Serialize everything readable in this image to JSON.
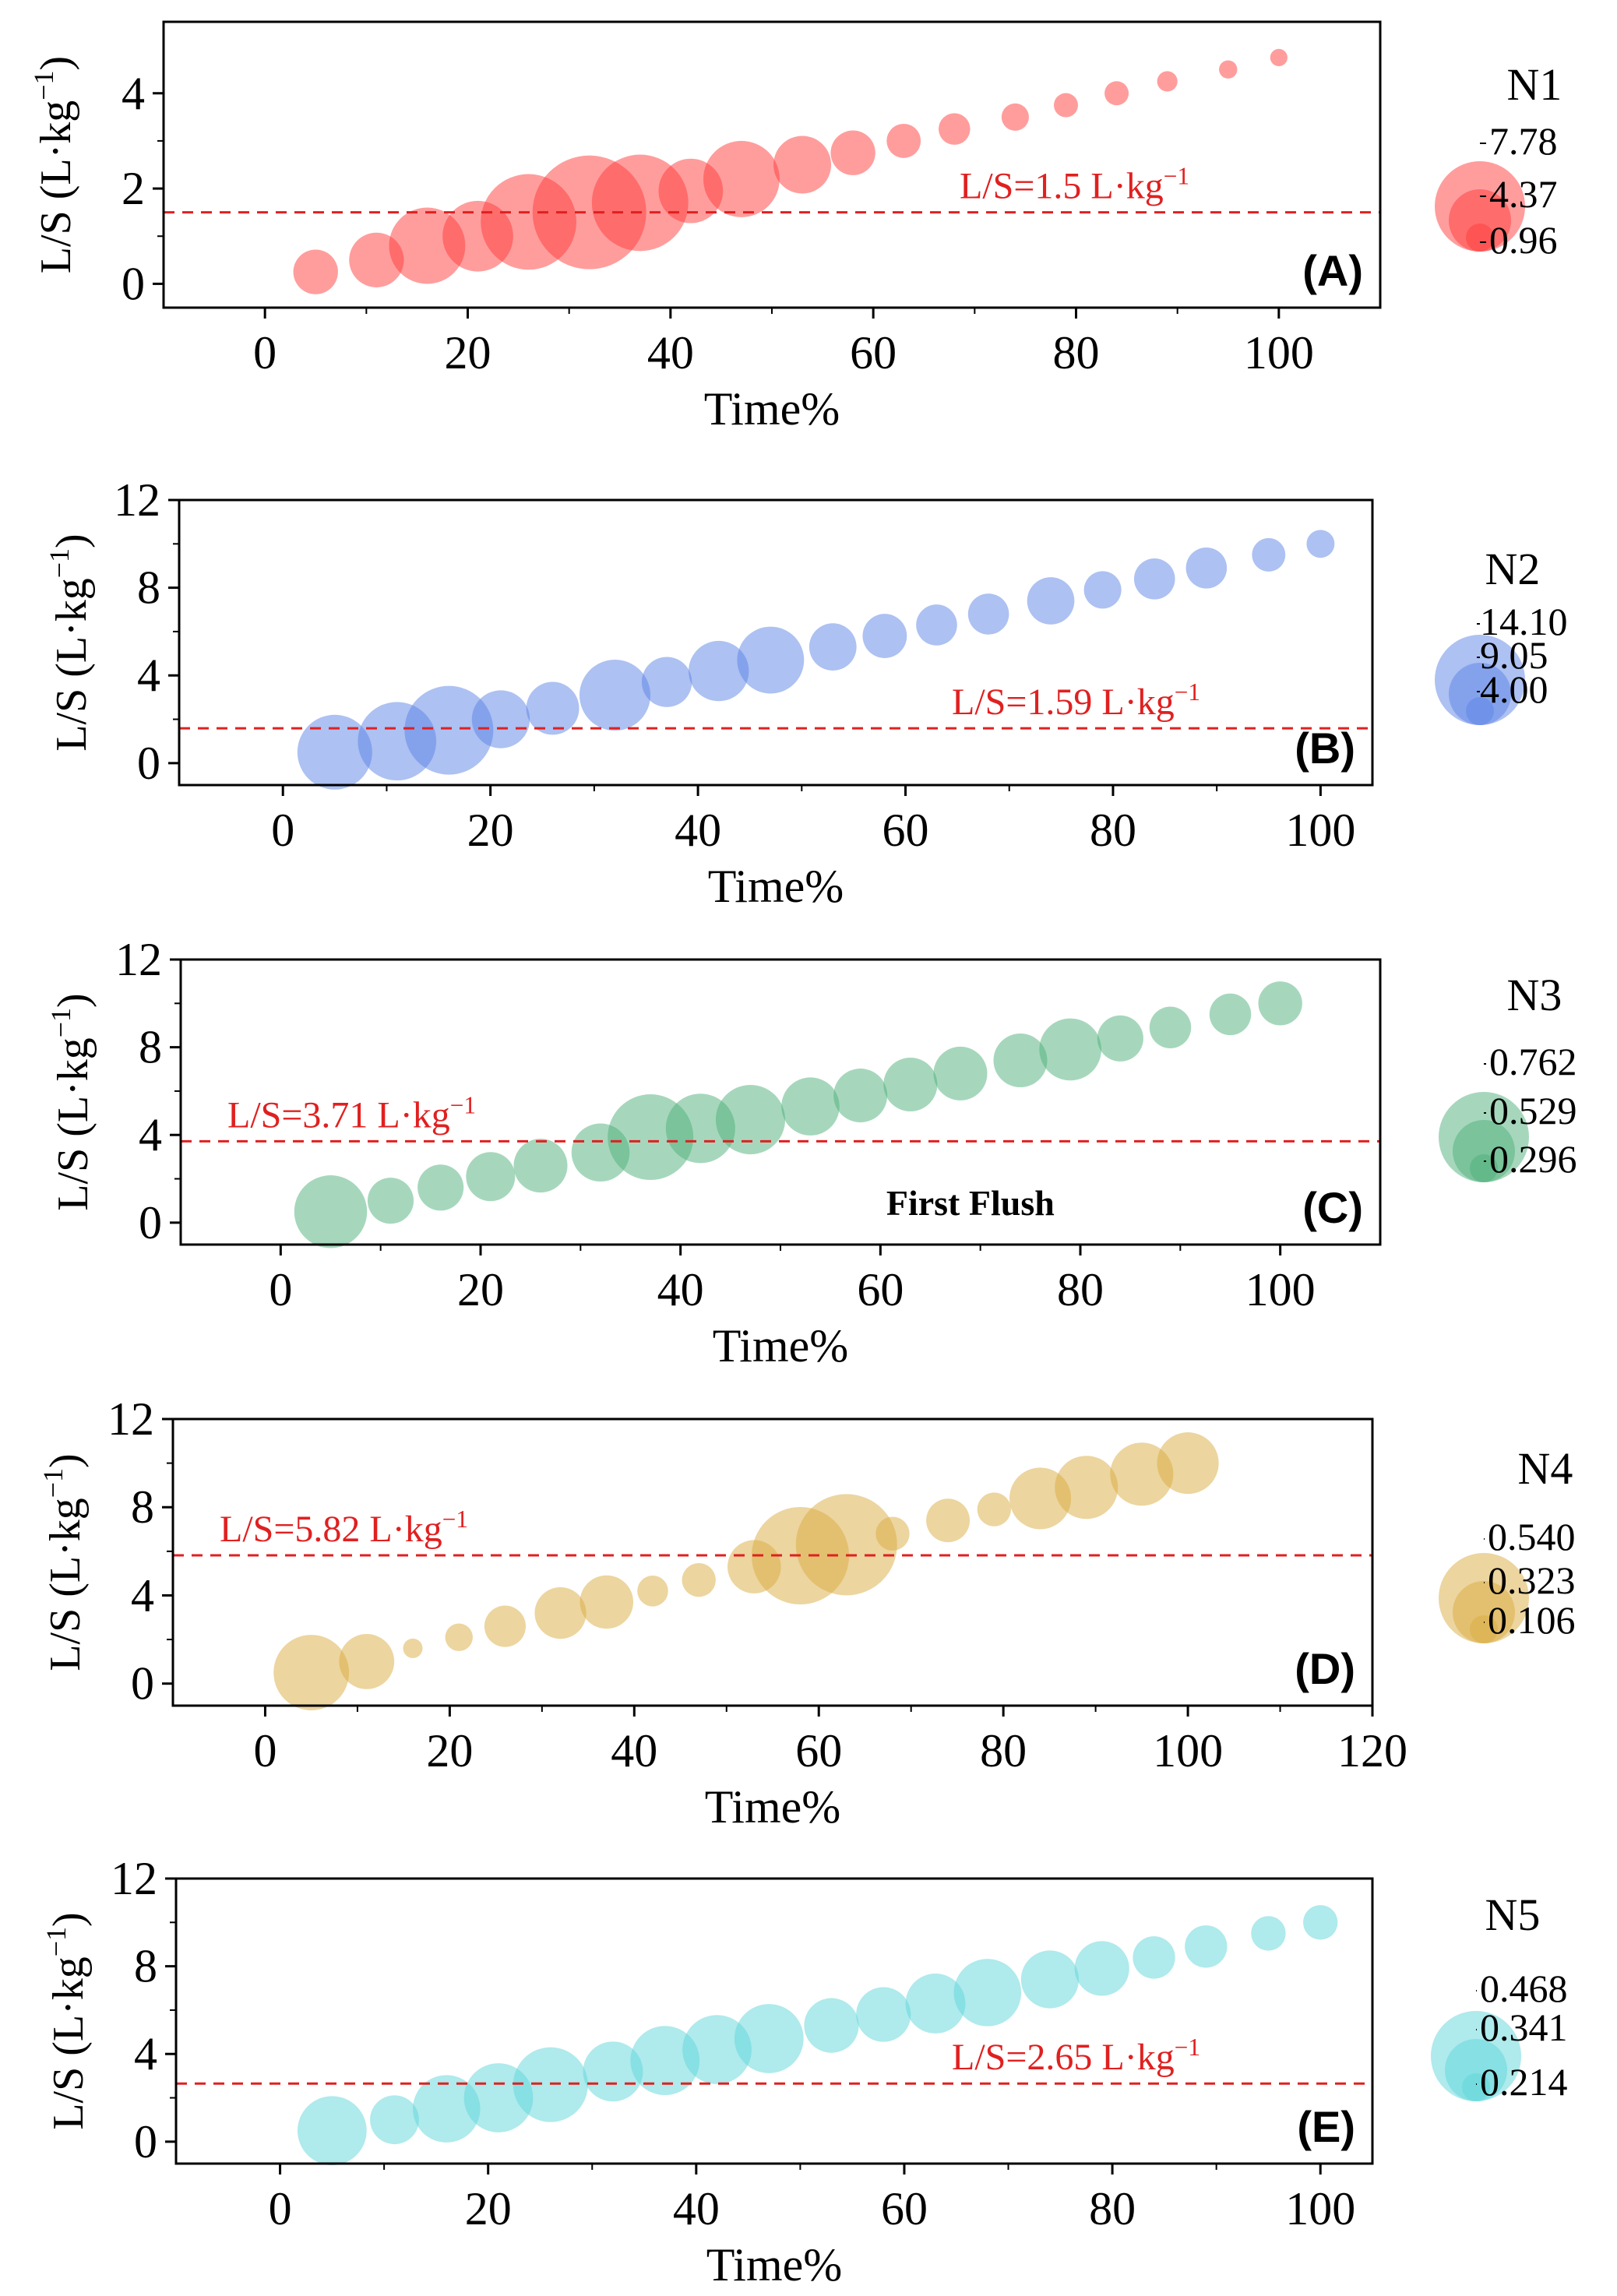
{
  "chart_data": [
    {
      "type": "bubble",
      "panel": "(A)",
      "series_name": "N1",
      "color": "#ff3b3b",
      "xlabel": "Time%",
      "ylabel": "L/S (L·kg−1)",
      "xlim": [
        -10,
        110
      ],
      "ylim": [
        -0.5,
        5.5
      ],
      "xticks": [
        "0",
        "20",
        "40",
        "60",
        "80",
        "100"
      ],
      "yticks": [
        "0",
        "2",
        "4"
      ],
      "threshold": {
        "value": 1.5,
        "label": "L/S=1.5 L·kg−1",
        "label_pos": "right"
      },
      "size_legend": [
        "7.78",
        "4.37",
        "0.96"
      ],
      "points": [
        {
          "x": 5,
          "y": 0.25,
          "s": 1.2
        },
        {
          "x": 11,
          "y": 0.5,
          "s": 1.8
        },
        {
          "x": 16,
          "y": 0.8,
          "s": 3.5
        },
        {
          "x": 21,
          "y": 1.0,
          "s": 3.0
        },
        {
          "x": 26,
          "y": 1.3,
          "s": 5.5
        },
        {
          "x": 32,
          "y": 1.5,
          "s": 7.78
        },
        {
          "x": 37,
          "y": 1.7,
          "s": 5.6
        },
        {
          "x": 42,
          "y": 1.95,
          "s": 2.5
        },
        {
          "x": 47,
          "y": 2.2,
          "s": 3.5
        },
        {
          "x": 53,
          "y": 2.5,
          "s": 2.0
        },
        {
          "x": 58,
          "y": 2.75,
          "s": 1.2
        },
        {
          "x": 63,
          "y": 3.0,
          "s": 0.7
        },
        {
          "x": 68,
          "y": 3.25,
          "s": 0.6
        },
        {
          "x": 74,
          "y": 3.5,
          "s": 0.45
        },
        {
          "x": 79,
          "y": 3.75,
          "s": 0.35
        },
        {
          "x": 84,
          "y": 4.0,
          "s": 0.35
        },
        {
          "x": 89,
          "y": 4.25,
          "s": 0.25
        },
        {
          "x": 95,
          "y": 4.5,
          "s": 0.2
        },
        {
          "x": 100,
          "y": 4.75,
          "s": 0.18
        }
      ]
    },
    {
      "type": "bubble",
      "panel": "(B)",
      "series_name": "N2",
      "color": "#5b84e6",
      "xlabel": "Time%",
      "ylabel": "L/S (L·kg−1)",
      "xlim": [
        -10,
        105
      ],
      "ylim": [
        -1,
        12
      ],
      "xticks": [
        "0",
        "20",
        "40",
        "60",
        "80",
        "100"
      ],
      "yticks": [
        "0",
        "4",
        "8",
        "12"
      ],
      "threshold": {
        "value": 1.59,
        "label": "L/S=1.59 L·kg−1",
        "label_pos": "right"
      },
      "size_legend": [
        "14.10",
        "9.05",
        "4.00"
      ],
      "points": [
        {
          "x": 5,
          "y": 0.5,
          "s": 10
        },
        {
          "x": 11,
          "y": 1.0,
          "s": 11
        },
        {
          "x": 16,
          "y": 1.5,
          "s": 14.1
        },
        {
          "x": 21,
          "y": 2.0,
          "s": 6
        },
        {
          "x": 26,
          "y": 2.5,
          "s": 5
        },
        {
          "x": 32,
          "y": 3.1,
          "s": 9
        },
        {
          "x": 37,
          "y": 3.7,
          "s": 4.5
        },
        {
          "x": 42,
          "y": 4.2,
          "s": 6.5
        },
        {
          "x": 47,
          "y": 4.7,
          "s": 8
        },
        {
          "x": 53,
          "y": 5.3,
          "s": 4
        },
        {
          "x": 58,
          "y": 5.8,
          "s": 3.5
        },
        {
          "x": 63,
          "y": 6.3,
          "s": 3
        },
        {
          "x": 68,
          "y": 6.8,
          "s": 3
        },
        {
          "x": 74,
          "y": 7.4,
          "s": 4
        },
        {
          "x": 79,
          "y": 7.9,
          "s": 2.5
        },
        {
          "x": 84,
          "y": 8.4,
          "s": 3
        },
        {
          "x": 89,
          "y": 8.9,
          "s": 3
        },
        {
          "x": 95,
          "y": 9.5,
          "s": 2
        },
        {
          "x": 100,
          "y": 10.0,
          "s": 1.4
        }
      ]
    },
    {
      "type": "bubble",
      "panel": "(C)",
      "series_name": "N3",
      "color": "#4db07a",
      "xlabel": "Time%",
      "ylabel": "L/S (L·kg−1)",
      "xlim": [
        -10,
        110
      ],
      "ylim": [
        -1,
        12
      ],
      "xticks": [
        "0",
        "20",
        "40",
        "60",
        "80",
        "100"
      ],
      "yticks": [
        "0",
        "4",
        "8",
        "12"
      ],
      "threshold": {
        "value": 3.71,
        "label": "L/S=3.71 L·kg−1",
        "label_pos": "left"
      },
      "annotation": "First Flush",
      "size_legend": [
        "0.762",
        "0.529",
        "0.296"
      ],
      "points": [
        {
          "x": 5,
          "y": 0.5,
          "s": 0.55
        },
        {
          "x": 11,
          "y": 1.0,
          "s": 0.22
        },
        {
          "x": 16,
          "y": 1.6,
          "s": 0.22
        },
        {
          "x": 21,
          "y": 2.1,
          "s": 0.25
        },
        {
          "x": 26,
          "y": 2.6,
          "s": 0.3
        },
        {
          "x": 32,
          "y": 3.2,
          "s": 0.35
        },
        {
          "x": 37,
          "y": 3.9,
          "s": 0.762
        },
        {
          "x": 42,
          "y": 4.3,
          "s": 0.5
        },
        {
          "x": 47,
          "y": 4.7,
          "s": 0.5
        },
        {
          "x": 53,
          "y": 5.3,
          "s": 0.35
        },
        {
          "x": 58,
          "y": 5.8,
          "s": 0.3
        },
        {
          "x": 63,
          "y": 6.3,
          "s": 0.3
        },
        {
          "x": 68,
          "y": 6.8,
          "s": 0.3
        },
        {
          "x": 74,
          "y": 7.4,
          "s": 0.3
        },
        {
          "x": 79,
          "y": 7.9,
          "s": 0.4
        },
        {
          "x": 84,
          "y": 8.4,
          "s": 0.22
        },
        {
          "x": 89,
          "y": 8.9,
          "s": 0.18
        },
        {
          "x": 95,
          "y": 9.5,
          "s": 0.18
        },
        {
          "x": 100,
          "y": 10.0,
          "s": 0.2
        }
      ]
    },
    {
      "type": "bubble",
      "panel": "(D)",
      "series_name": "N4",
      "color": "#d9ac3f",
      "xlabel": "Time%",
      "ylabel": "L/S (L·kg−1)",
      "xlim": [
        -10,
        120
      ],
      "ylim": [
        -1,
        12
      ],
      "xticks": [
        "0",
        "20",
        "40",
        "60",
        "80",
        "100",
        "120"
      ],
      "yticks": [
        "0",
        "4",
        "8",
        "12"
      ],
      "threshold": {
        "value": 5.82,
        "label": "L/S=5.82 L·kg−1",
        "label_pos": "left"
      },
      "size_legend": [
        "0.540",
        "0.323",
        "0.106"
      ],
      "points": [
        {
          "x": 5,
          "y": 0.5,
          "s": 0.3
        },
        {
          "x": 11,
          "y": 1.0,
          "s": 0.16
        },
        {
          "x": 16,
          "y": 1.6,
          "s": 0.02
        },
        {
          "x": 21,
          "y": 2.1,
          "s": 0.04
        },
        {
          "x": 26,
          "y": 2.6,
          "s": 0.09
        },
        {
          "x": 32,
          "y": 3.2,
          "s": 0.14
        },
        {
          "x": 37,
          "y": 3.7,
          "s": 0.15
        },
        {
          "x": 42,
          "y": 4.2,
          "s": 0.05
        },
        {
          "x": 47,
          "y": 4.7,
          "s": 0.06
        },
        {
          "x": 53,
          "y": 5.3,
          "s": 0.15
        },
        {
          "x": 58,
          "y": 5.8,
          "s": 0.5
        },
        {
          "x": 63,
          "y": 6.3,
          "s": 0.54
        },
        {
          "x": 68,
          "y": 6.8,
          "s": 0.06
        },
        {
          "x": 74,
          "y": 7.4,
          "s": 0.1
        },
        {
          "x": 79,
          "y": 7.9,
          "s": 0.06
        },
        {
          "x": 84,
          "y": 8.4,
          "s": 0.2
        },
        {
          "x": 89,
          "y": 8.9,
          "s": 0.21
        },
        {
          "x": 95,
          "y": 9.5,
          "s": 0.21
        },
        {
          "x": 100,
          "y": 10.0,
          "s": 0.2
        }
      ]
    },
    {
      "type": "bubble",
      "panel": "(E)",
      "series_name": "N5",
      "color": "#5fd5d9",
      "xlabel": "Time%",
      "ylabel": "L/S (L·kg−1)",
      "xlim": [
        -10,
        105
      ],
      "ylim": [
        -1,
        12
      ],
      "xticks": [
        "0",
        "20",
        "40",
        "60",
        "80",
        "100"
      ],
      "yticks": [
        "0",
        "4",
        "8",
        "12"
      ],
      "threshold": {
        "value": 2.65,
        "label": "L/S=2.65 L·kg−1",
        "label_pos": "right"
      },
      "size_legend": [
        "0.468",
        "0.341",
        "0.214"
      ],
      "points": [
        {
          "x": 5,
          "y": 0.5,
          "s": 0.4
        },
        {
          "x": 11,
          "y": 1.0,
          "s": 0.2
        },
        {
          "x": 16,
          "y": 1.5,
          "s": 0.38
        },
        {
          "x": 21,
          "y": 2.0,
          "s": 0.4
        },
        {
          "x": 26,
          "y": 2.6,
          "s": 0.468
        },
        {
          "x": 32,
          "y": 3.2,
          "s": 0.3
        },
        {
          "x": 37,
          "y": 3.7,
          "s": 0.4
        },
        {
          "x": 42,
          "y": 4.2,
          "s": 0.4
        },
        {
          "x": 47,
          "y": 4.7,
          "s": 0.4
        },
        {
          "x": 53,
          "y": 5.3,
          "s": 0.25
        },
        {
          "x": 58,
          "y": 5.8,
          "s": 0.25
        },
        {
          "x": 63,
          "y": 6.3,
          "s": 0.3
        },
        {
          "x": 68,
          "y": 6.8,
          "s": 0.38
        },
        {
          "x": 74,
          "y": 7.4,
          "s": 0.28
        },
        {
          "x": 79,
          "y": 7.9,
          "s": 0.25
        },
        {
          "x": 84,
          "y": 8.4,
          "s": 0.15
        },
        {
          "x": 89,
          "y": 8.9,
          "s": 0.15
        },
        {
          "x": 95,
          "y": 9.5,
          "s": 0.1
        },
        {
          "x": 100,
          "y": 10.0,
          "s": 0.1
        }
      ]
    }
  ]
}
